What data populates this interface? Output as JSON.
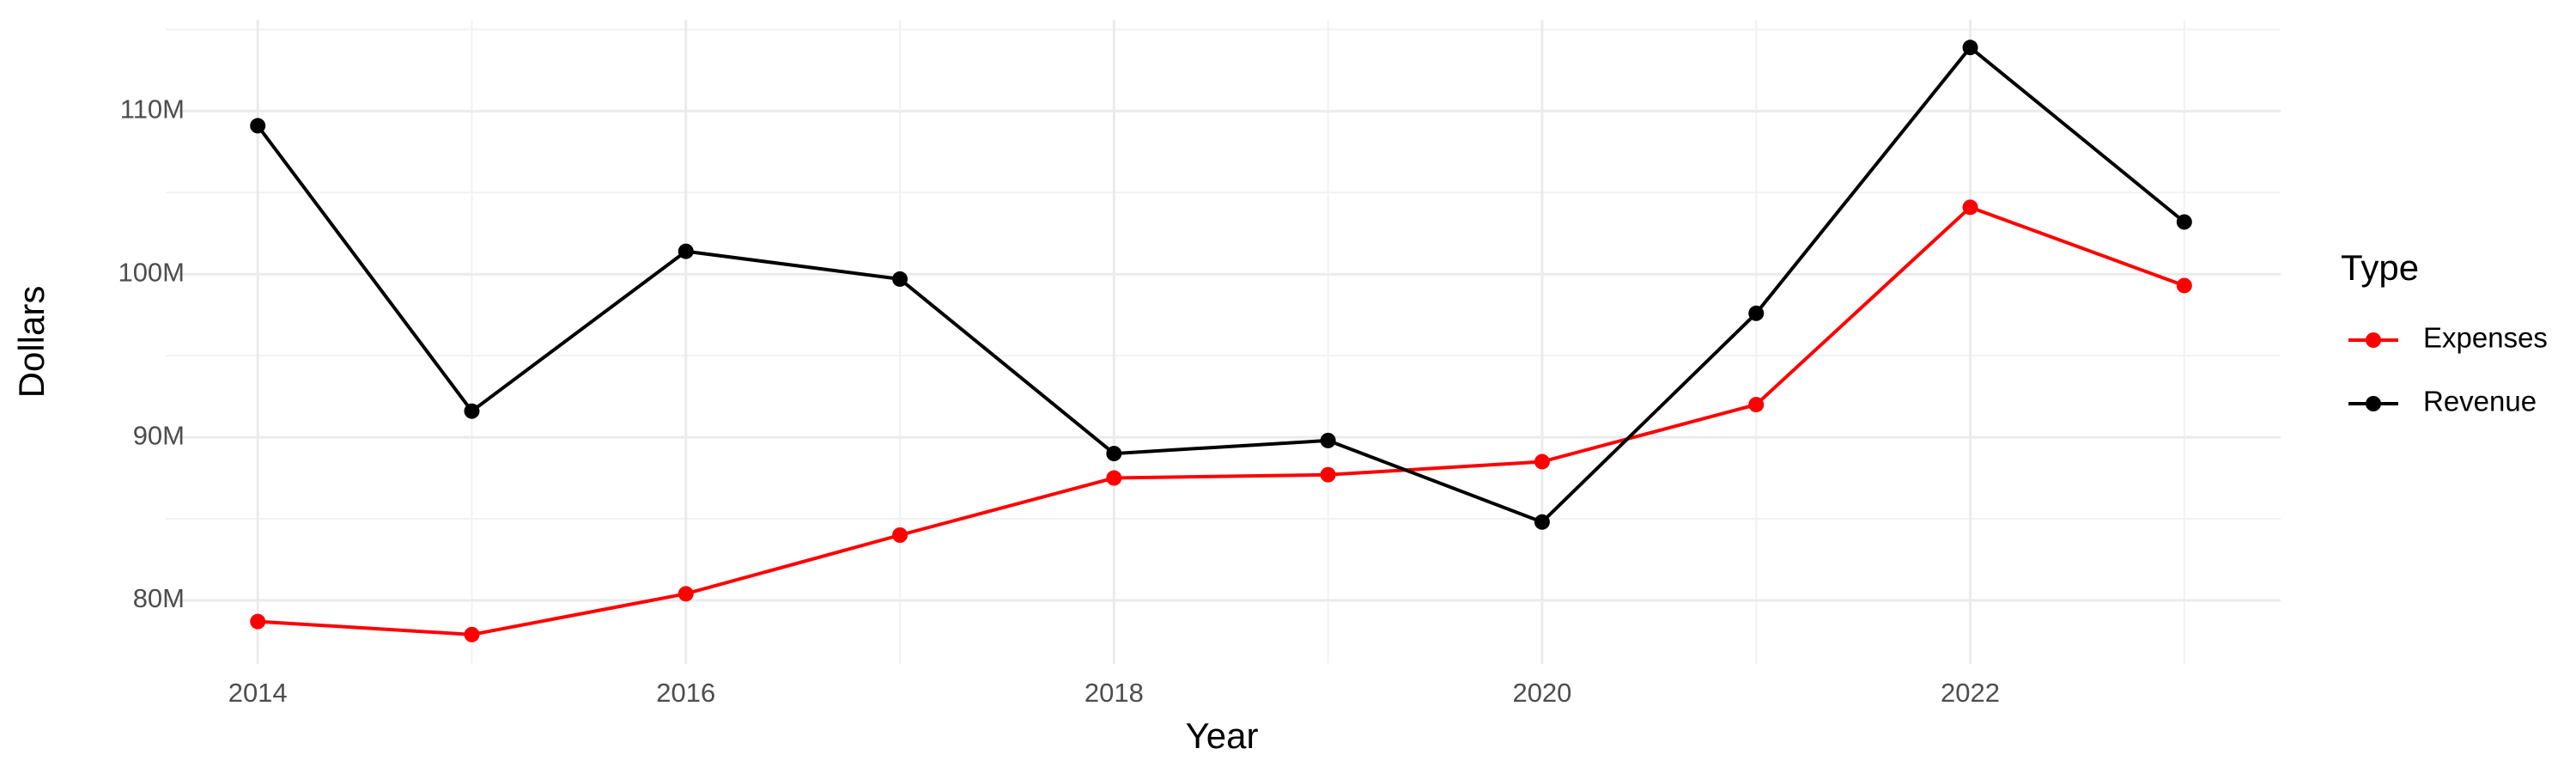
{
  "chart_data": {
    "type": "line",
    "x_label": "Year",
    "y_label": "Dollars",
    "legend_title": "Type",
    "x": [
      2014,
      2015,
      2016,
      2017,
      2018,
      2019,
      2020,
      2021,
      2022,
      2023
    ],
    "series": [
      {
        "name": "Expenses",
        "color": "#ff0000",
        "values": [
          78700000,
          77900000,
          80400000,
          84000000,
          87500000,
          87700000,
          88500000,
          92000000,
          104100000,
          99300000
        ]
      },
      {
        "name": "Revenue",
        "color": "#000000",
        "values": [
          109100000,
          91600000,
          101400000,
          99700000,
          89000000,
          89800000,
          84800000,
          97600000,
          113900000,
          103200000
        ]
      }
    ],
    "xlim": [
      2013.57,
      2023.45
    ],
    "xticks": [
      2014,
      2016,
      2018,
      2020,
      2022
    ],
    "ylim": [
      76100000,
      115600000
    ],
    "yticks": [
      {
        "value": 80000000,
        "label": "80M"
      },
      {
        "value": 90000000,
        "label": "90M"
      },
      {
        "value": 100000000,
        "label": "100M"
      },
      {
        "value": 110000000,
        "label": "110M"
      }
    ],
    "grid": true,
    "legend_position": "right"
  }
}
